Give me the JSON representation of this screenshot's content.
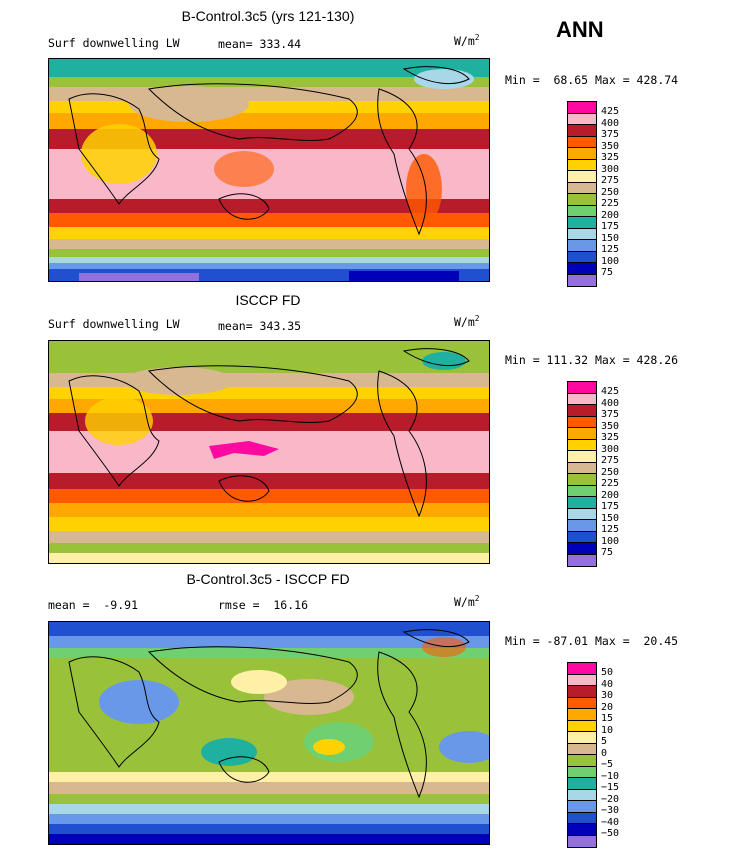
{
  "season": "ANN",
  "panels": [
    {
      "title": "B-Control.3c5 (yrs 121-130)",
      "left_label": "Surf downwelling LW",
      "mid_label": "mean= 333.44",
      "units": "W/m",
      "units_exp": "2",
      "minmax": "Min =  68.65 Max = 428.74",
      "levels": [
        "425",
        "400",
        "375",
        "350",
        "325",
        "300",
        "275",
        "250",
        "225",
        "200",
        "175",
        "150",
        "125",
        "100",
        "75"
      ]
    },
    {
      "title": "ISCCP FD",
      "left_label": "Surf downwelling LW",
      "mid_label": "mean= 343.35",
      "units": "W/m",
      "units_exp": "2",
      "minmax": "Min = 111.32 Max = 428.26",
      "levels": [
        "425",
        "400",
        "375",
        "350",
        "325",
        "300",
        "275",
        "250",
        "225",
        "200",
        "175",
        "150",
        "125",
        "100",
        "75"
      ]
    },
    {
      "title": "B-Control.3c5 - ISCCP FD",
      "left_label": "mean =  -9.91",
      "mid_label": "rmse =  16.16",
      "units": "W/m",
      "units_exp": "2",
      "minmax": "Min = -87.01 Max =  20.45",
      "levels": [
        "50",
        "40",
        "30",
        "20",
        "15",
        "10",
        "5",
        "0",
        "−5",
        "−10",
        "−15",
        "−20",
        "−30",
        "−40",
        "−50"
      ]
    }
  ],
  "colorbar_colors": [
    "#ff0aa0",
    "#f8b8c8",
    "#b71c2a",
    "#ff5a00",
    "#ffa800",
    "#ffd200",
    "#fff0a8",
    "#d8b890",
    "#99c23a",
    "#70d070",
    "#20b0a0",
    "#a8d8e8",
    "#6a98e8",
    "#2050d0",
    "#0000b8",
    "#9370db"
  ]
}
